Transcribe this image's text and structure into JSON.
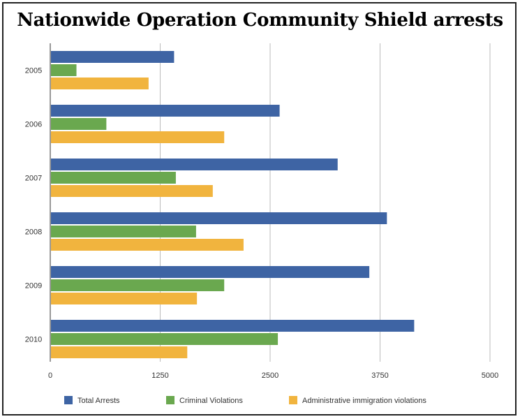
{
  "chart_data": {
    "type": "bar",
    "orientation": "horizontal",
    "title": "Nationwide Operation Community Shield arrests",
    "xlabel": "",
    "ylabel": "",
    "categories": [
      "2005",
      "2006",
      "2007",
      "2008",
      "2009",
      "2010"
    ],
    "series": [
      {
        "name": "Total Arrests",
        "color": "#3e64a4",
        "values": [
          1400,
          2600,
          3260,
          3820,
          3620,
          4130
        ]
      },
      {
        "name": "Criminal Violations",
        "color": "#6aa84f",
        "values": [
          290,
          630,
          1420,
          1650,
          1970,
          2580
        ]
      },
      {
        "name": "Administrative immigration violations",
        "color": "#f1b43e",
        "values": [
          1110,
          1970,
          1840,
          2190,
          1660,
          1550
        ]
      }
    ],
    "xlim": [
      0,
      5000
    ],
    "xticks": [
      "0",
      "1250",
      "2500",
      "3750",
      "5000"
    ],
    "grid": true,
    "legend_position": "bottom"
  }
}
